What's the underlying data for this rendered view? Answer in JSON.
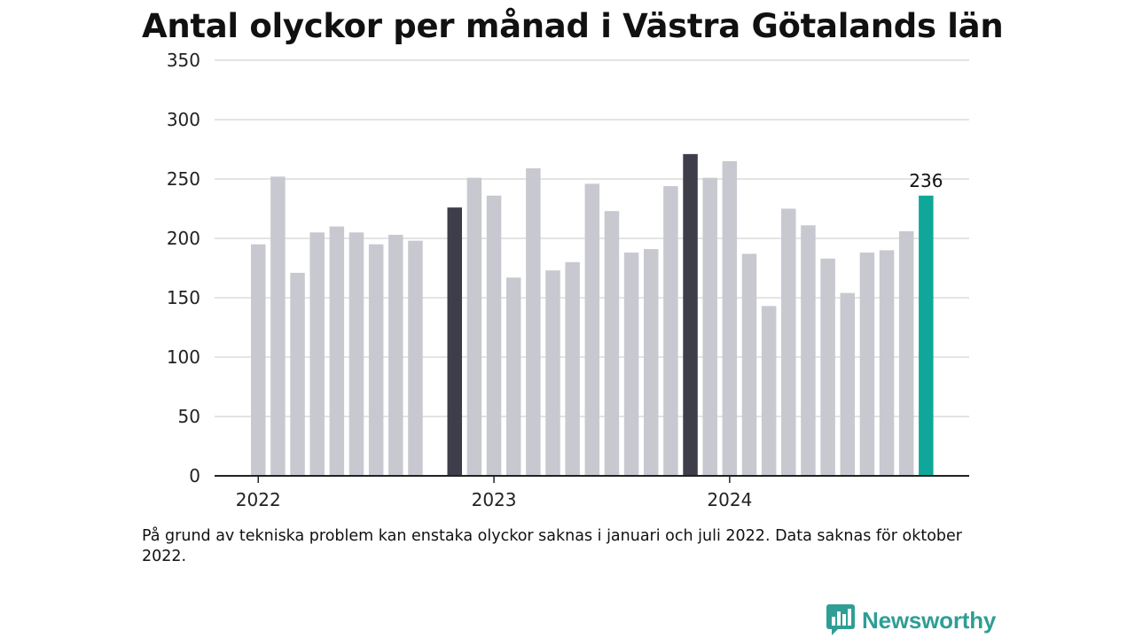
{
  "chart_data": {
    "type": "bar",
    "title": "Antal olyckor per månad i Västra Götalands län",
    "ylim": [
      0,
      350
    ],
    "yticks": [
      0,
      50,
      100,
      150,
      200,
      250,
      300,
      350
    ],
    "year_labels": [
      "2022",
      "2023",
      "2024"
    ],
    "months": [
      {
        "year": 2022,
        "month": 1,
        "value": 195
      },
      {
        "year": 2022,
        "month": 2,
        "value": 252
      },
      {
        "year": 2022,
        "month": 3,
        "value": 171
      },
      {
        "year": 2022,
        "month": 4,
        "value": 205
      },
      {
        "year": 2022,
        "month": 5,
        "value": 210
      },
      {
        "year": 2022,
        "month": 6,
        "value": 205
      },
      {
        "year": 2022,
        "month": 7,
        "value": 195
      },
      {
        "year": 2022,
        "month": 8,
        "value": 203
      },
      {
        "year": 2022,
        "month": 9,
        "value": 198
      },
      {
        "year": 2022,
        "month": 10,
        "value": null
      },
      {
        "year": 2022,
        "month": 11,
        "value": 226
      },
      {
        "year": 2022,
        "month": 12,
        "value": 251
      },
      {
        "year": 2023,
        "month": 1,
        "value": 236
      },
      {
        "year": 2023,
        "month": 2,
        "value": 167
      },
      {
        "year": 2023,
        "month": 3,
        "value": 259
      },
      {
        "year": 2023,
        "month": 4,
        "value": 173
      },
      {
        "year": 2023,
        "month": 5,
        "value": 180
      },
      {
        "year": 2023,
        "month": 6,
        "value": 246
      },
      {
        "year": 2023,
        "month": 7,
        "value": 223
      },
      {
        "year": 2023,
        "month": 8,
        "value": 188
      },
      {
        "year": 2023,
        "month": 9,
        "value": 191
      },
      {
        "year": 2023,
        "month": 10,
        "value": 244
      },
      {
        "year": 2023,
        "month": 11,
        "value": 271
      },
      {
        "year": 2023,
        "month": 12,
        "value": 251
      },
      {
        "year": 2024,
        "month": 1,
        "value": 265
      },
      {
        "year": 2024,
        "month": 2,
        "value": 187
      },
      {
        "year": 2024,
        "month": 3,
        "value": 143
      },
      {
        "year": 2024,
        "month": 4,
        "value": 225
      },
      {
        "year": 2024,
        "month": 5,
        "value": 211
      },
      {
        "year": 2024,
        "month": 6,
        "value": 183
      },
      {
        "year": 2024,
        "month": 7,
        "value": 154
      },
      {
        "year": 2024,
        "month": 8,
        "value": 188
      },
      {
        "year": 2024,
        "month": 9,
        "value": 190
      },
      {
        "year": 2024,
        "month": 10,
        "value": 206
      },
      {
        "year": 2024,
        "month": 11,
        "value": 236
      }
    ],
    "highlighted": [
      {
        "year": 2022,
        "month": 11,
        "style": "previous-year"
      },
      {
        "year": 2023,
        "month": 11,
        "style": "previous-year"
      },
      {
        "year": 2024,
        "month": 11,
        "style": "current",
        "label": "236"
      }
    ],
    "colors": {
      "bar": "#c8c8d0",
      "previous_year": "#3e3d4a",
      "current": "#0fa79a",
      "grid": "#dcdcdc",
      "axis": "#222222"
    },
    "grid": true,
    "legend": "none"
  },
  "footnote": "På grund av tekniska problem kan enstaka olyckor saknas i januari och juli 2022. Data saknas för oktober 2022.",
  "brand": {
    "name": "Newsworthy",
    "icon": "bar-chart-speech-bubble-icon",
    "color": "#2f9e95"
  }
}
